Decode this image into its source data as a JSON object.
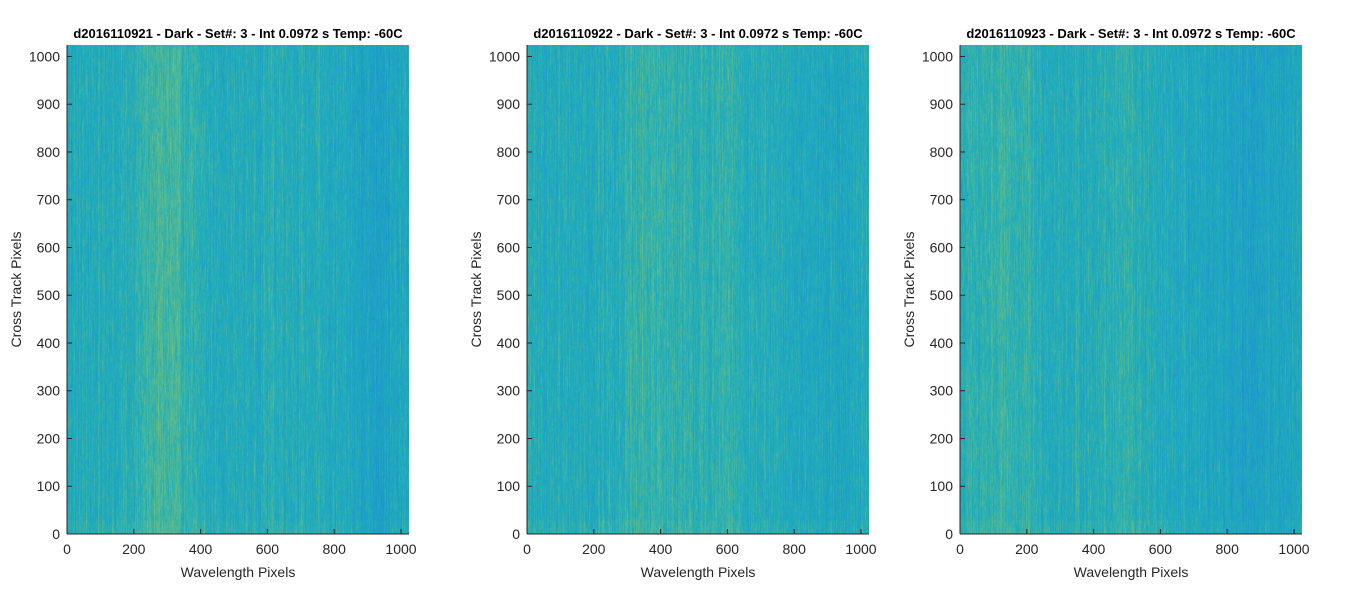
{
  "chart_data": [
    {
      "type": "heatmap",
      "title": "d2016110921 - Dark - Set#: 3 - Int 0.0972 s Temp: -60C",
      "xlabel": "Wavelength Pixels",
      "ylabel": "Cross Track Pixels",
      "xlim": [
        0,
        1024
      ],
      "ylim": [
        0,
        1024
      ],
      "xticks": [
        0,
        200,
        400,
        600,
        800,
        1000
      ],
      "yticks": [
        0,
        100,
        200,
        300,
        400,
        500,
        600,
        700,
        800,
        900,
        1000
      ],
      "colormap": "parula",
      "bright_columns": [
        {
          "center": 290,
          "width": 90,
          "strength": 0.55
        },
        {
          "center": 640,
          "width": 60,
          "strength": 0.15
        }
      ],
      "dark_columns": [
        {
          "center": 930,
          "width": 110,
          "strength": 0.35
        }
      ]
    },
    {
      "type": "heatmap",
      "title": "d2016110922 - Dark - Set#: 3 - Int 0.0972 s Temp: -60C",
      "xlabel": "Wavelength Pixels",
      "ylabel": "Cross Track Pixels",
      "xlim": [
        0,
        1024
      ],
      "ylim": [
        0,
        1024
      ],
      "xticks": [
        0,
        200,
        400,
        600,
        800,
        1000
      ],
      "yticks": [
        0,
        100,
        200,
        300,
        400,
        500,
        600,
        700,
        800,
        900,
        1000
      ],
      "colormap": "parula",
      "bright_columns": [
        {
          "center": 380,
          "width": 120,
          "strength": 0.35
        },
        {
          "center": 600,
          "width": 80,
          "strength": 0.25
        }
      ],
      "dark_columns": [
        {
          "center": 900,
          "width": 120,
          "strength": 0.2
        }
      ]
    },
    {
      "type": "heatmap",
      "title": "d2016110923 - Dark - Set#: 3 - Int 0.0972 s Temp: -60C",
      "xlabel": "Wavelength Pixels",
      "ylabel": "Cross Track Pixels",
      "xlim": [
        0,
        1024
      ],
      "ylim": [
        0,
        1024
      ],
      "xticks": [
        0,
        200,
        400,
        600,
        800,
        1000
      ],
      "yticks": [
        0,
        100,
        200,
        300,
        400,
        500,
        600,
        700,
        800,
        900,
        1000
      ],
      "colormap": "parula",
      "bright_columns": [
        {
          "center": 120,
          "width": 120,
          "strength": 0.35
        },
        {
          "center": 480,
          "width": 80,
          "strength": 0.25
        }
      ],
      "dark_columns": [
        {
          "center": 850,
          "width": 200,
          "strength": 0.35
        }
      ]
    }
  ],
  "colors": {
    "low": "#1a8fd6",
    "mid": "#22aeb8",
    "high": "#93c764",
    "axis": "#262626"
  }
}
